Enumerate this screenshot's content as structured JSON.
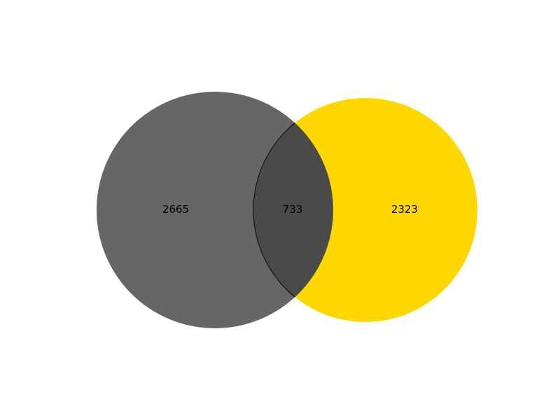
{
  "chart_data": {
    "type": "venn",
    "sets": [
      {
        "color": "#666666"
      },
      {
        "color": "#ffd700"
      }
    ],
    "intersection_color": "#4a4a4a",
    "outline_color": "#1a1a1a",
    "regions": {
      "only_a": "2665",
      "both": "733",
      "only_b": "2323"
    }
  }
}
